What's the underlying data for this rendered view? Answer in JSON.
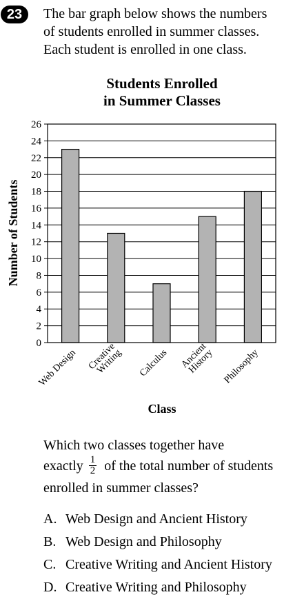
{
  "question": {
    "number": "23",
    "intro_lines": [
      "The bar graph below shows the numbers",
      "of students enrolled in summer classes.",
      "Each student is enrolled in one class."
    ],
    "prompt_line1": "Which two classes together have",
    "prompt_line2_before": "exactly",
    "fraction_num": "1",
    "fraction_den": "2",
    "prompt_line2_after": "of the total number of students",
    "prompt_line3": "enrolled in summer classes?",
    "choices": [
      {
        "letter": "A.",
        "text": "Web Design and Ancient History"
      },
      {
        "letter": "B.",
        "text": "Web Design and Philosophy"
      },
      {
        "letter": "C.",
        "text": "Creative Writing and Ancient History"
      },
      {
        "letter": "D.",
        "text": "Creative Writing and Philosophy"
      }
    ]
  },
  "chart_data": {
    "type": "bar",
    "title": [
      "Students Enrolled",
      "in Summer Classes"
    ],
    "xlabel": "Class",
    "ylabel": "Number of Students",
    "categories": [
      [
        "Web Design"
      ],
      [
        "Creative",
        "Writing"
      ],
      [
        "Calculus"
      ],
      [
        "Ancient",
        "History"
      ],
      [
        "Philosophy"
      ]
    ],
    "values": [
      23,
      13,
      7,
      15,
      18
    ],
    "ylim": [
      0,
      26
    ],
    "yticks": [
      0,
      2,
      4,
      6,
      8,
      10,
      12,
      14,
      16,
      18,
      20,
      22,
      24,
      26
    ],
    "grid": true,
    "bar_color": "#b3b3b3",
    "frame_color": "#000000"
  }
}
